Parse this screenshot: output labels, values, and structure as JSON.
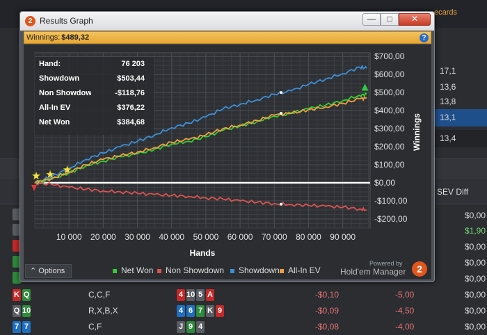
{
  "background": {
    "top_link": "ecards",
    "rows": [
      "17,1",
      "13,6",
      "13,8",
      "13,1",
      "13,4"
    ],
    "column_header": "SEV Diff",
    "sev_values": [
      "$0,00",
      "$1,90",
      "$0,00",
      "$0,00",
      "$0,00"
    ],
    "lines": [
      {
        "hole": [
          "K",
          "Q"
        ],
        "action": "C,C,F",
        "board": [
          "4",
          "10",
          "5",
          "A"
        ],
        "value": "-$0,10",
        "bb": "-5,00",
        "sev": "$0,00"
      },
      {
        "hole": [
          "Q",
          "10"
        ],
        "action": "R,X,B,X",
        "board": [
          "4",
          "6",
          "7",
          "K",
          "9"
        ],
        "value": "-$0,09",
        "bb": "-4,50",
        "sev": "$0,00"
      },
      {
        "hole": [
          "7",
          "7"
        ],
        "action": "C,F",
        "board": [
          "J",
          "9",
          "4"
        ],
        "value": "-$0,08",
        "bb": "-4,00",
        "sev": "$0,00"
      }
    ]
  },
  "window": {
    "app_icon": "2",
    "title": "Results Graph",
    "min_label": "—",
    "max_label": "□",
    "close_label": "✕",
    "winnings_label": "Winnings:",
    "winnings_value": "$489,32",
    "help_icon": "?"
  },
  "stats": [
    {
      "label": "Hand:",
      "value": "76 203"
    },
    {
      "label": "Showdown",
      "value": "$503,44"
    },
    {
      "label": "Non Showdown",
      "value": "-$118,76"
    },
    {
      "label": "All-In EV",
      "value": "$376,22"
    },
    {
      "label": "Net Won",
      "value": "$384,68"
    }
  ],
  "legend": [
    {
      "name": "Net Won",
      "color": "#33cc33"
    },
    {
      "name": "Non Showdown",
      "color": "#d9534f"
    },
    {
      "name": "Showdown",
      "color": "#3d8fd6"
    },
    {
      "name": "All-In EV",
      "color": "#f0a040"
    }
  ],
  "footer": {
    "options_label": "Options",
    "options_icon": "chevron-up-icon",
    "powered_by": "Powered by",
    "brand": "Hold'em Manager",
    "brand_logo": "2"
  },
  "chart_data": {
    "type": "line",
    "xlabel": "Hands",
    "ylabel": "Winnings",
    "xlim": [
      0,
      98000
    ],
    "ylim": [
      -250,
      720
    ],
    "x_ticks": [
      10000,
      20000,
      30000,
      40000,
      50000,
      60000,
      70000,
      80000,
      90000
    ],
    "x_tick_labels": [
      "10 000",
      "20 000",
      "30 000",
      "40 000",
      "50 000",
      "60 000",
      "70 000",
      "80 000",
      "90 000"
    ],
    "y_ticks": [
      -200,
      -100,
      0,
      100,
      200,
      300,
      400,
      500,
      600,
      700
    ],
    "y_tick_labels": [
      "-$200,00",
      "-$100,00",
      "$0,00",
      "$100,00",
      "$200,00",
      "$300,00",
      "$400,00",
      "$500,00",
      "$600,00",
      "$700,00"
    ],
    "grid": true,
    "series": [
      {
        "name": "Showdown",
        "color": "#3d8fd6",
        "x": [
          0,
          5000,
          10000,
          15000,
          20000,
          25000,
          30000,
          35000,
          40000,
          45000,
          50000,
          55000,
          60000,
          65000,
          70000,
          75000,
          80000,
          85000,
          90000,
          95000,
          97000
        ],
        "y": [
          0,
          35,
          80,
          130,
          165,
          200,
          230,
          265,
          305,
          330,
          365,
          410,
          435,
          460,
          490,
          510,
          545,
          575,
          605,
          640,
          635
        ]
      },
      {
        "name": "Net Won",
        "color": "#33cc33",
        "x": [
          0,
          5000,
          10000,
          15000,
          20000,
          25000,
          30000,
          35000,
          40000,
          45000,
          50000,
          55000,
          60000,
          65000,
          70000,
          75000,
          80000,
          85000,
          90000,
          95000,
          97000
        ],
        "y": [
          0,
          20,
          55,
          95,
          120,
          145,
          160,
          185,
          215,
          230,
          255,
          290,
          315,
          340,
          370,
          385,
          410,
          430,
          455,
          485,
          490
        ]
      },
      {
        "name": "All-In EV",
        "color": "#f0a040",
        "x": [
          0,
          5000,
          10000,
          15000,
          20000,
          25000,
          30000,
          35000,
          40000,
          45000,
          50000,
          55000,
          60000,
          65000,
          70000,
          75000,
          80000,
          85000,
          90000,
          95000,
          97000
        ],
        "y": [
          0,
          25,
          60,
          100,
          130,
          150,
          170,
          195,
          225,
          240,
          265,
          300,
          320,
          345,
          375,
          385,
          405,
          420,
          440,
          465,
          470
        ]
      },
      {
        "name": "Non Showdown",
        "color": "#d9534f",
        "x": [
          0,
          5000,
          10000,
          15000,
          20000,
          25000,
          30000,
          35000,
          40000,
          45000,
          50000,
          55000,
          60000,
          65000,
          70000,
          75000,
          80000,
          85000,
          90000,
          95000,
          97000
        ],
        "y": [
          0,
          -10,
          -25,
          -35,
          -45,
          -50,
          -58,
          -65,
          -70,
          -75,
          -83,
          -90,
          -100,
          -108,
          -115,
          -120,
          -125,
          -130,
          -135,
          -145,
          -150
        ]
      }
    ]
  }
}
